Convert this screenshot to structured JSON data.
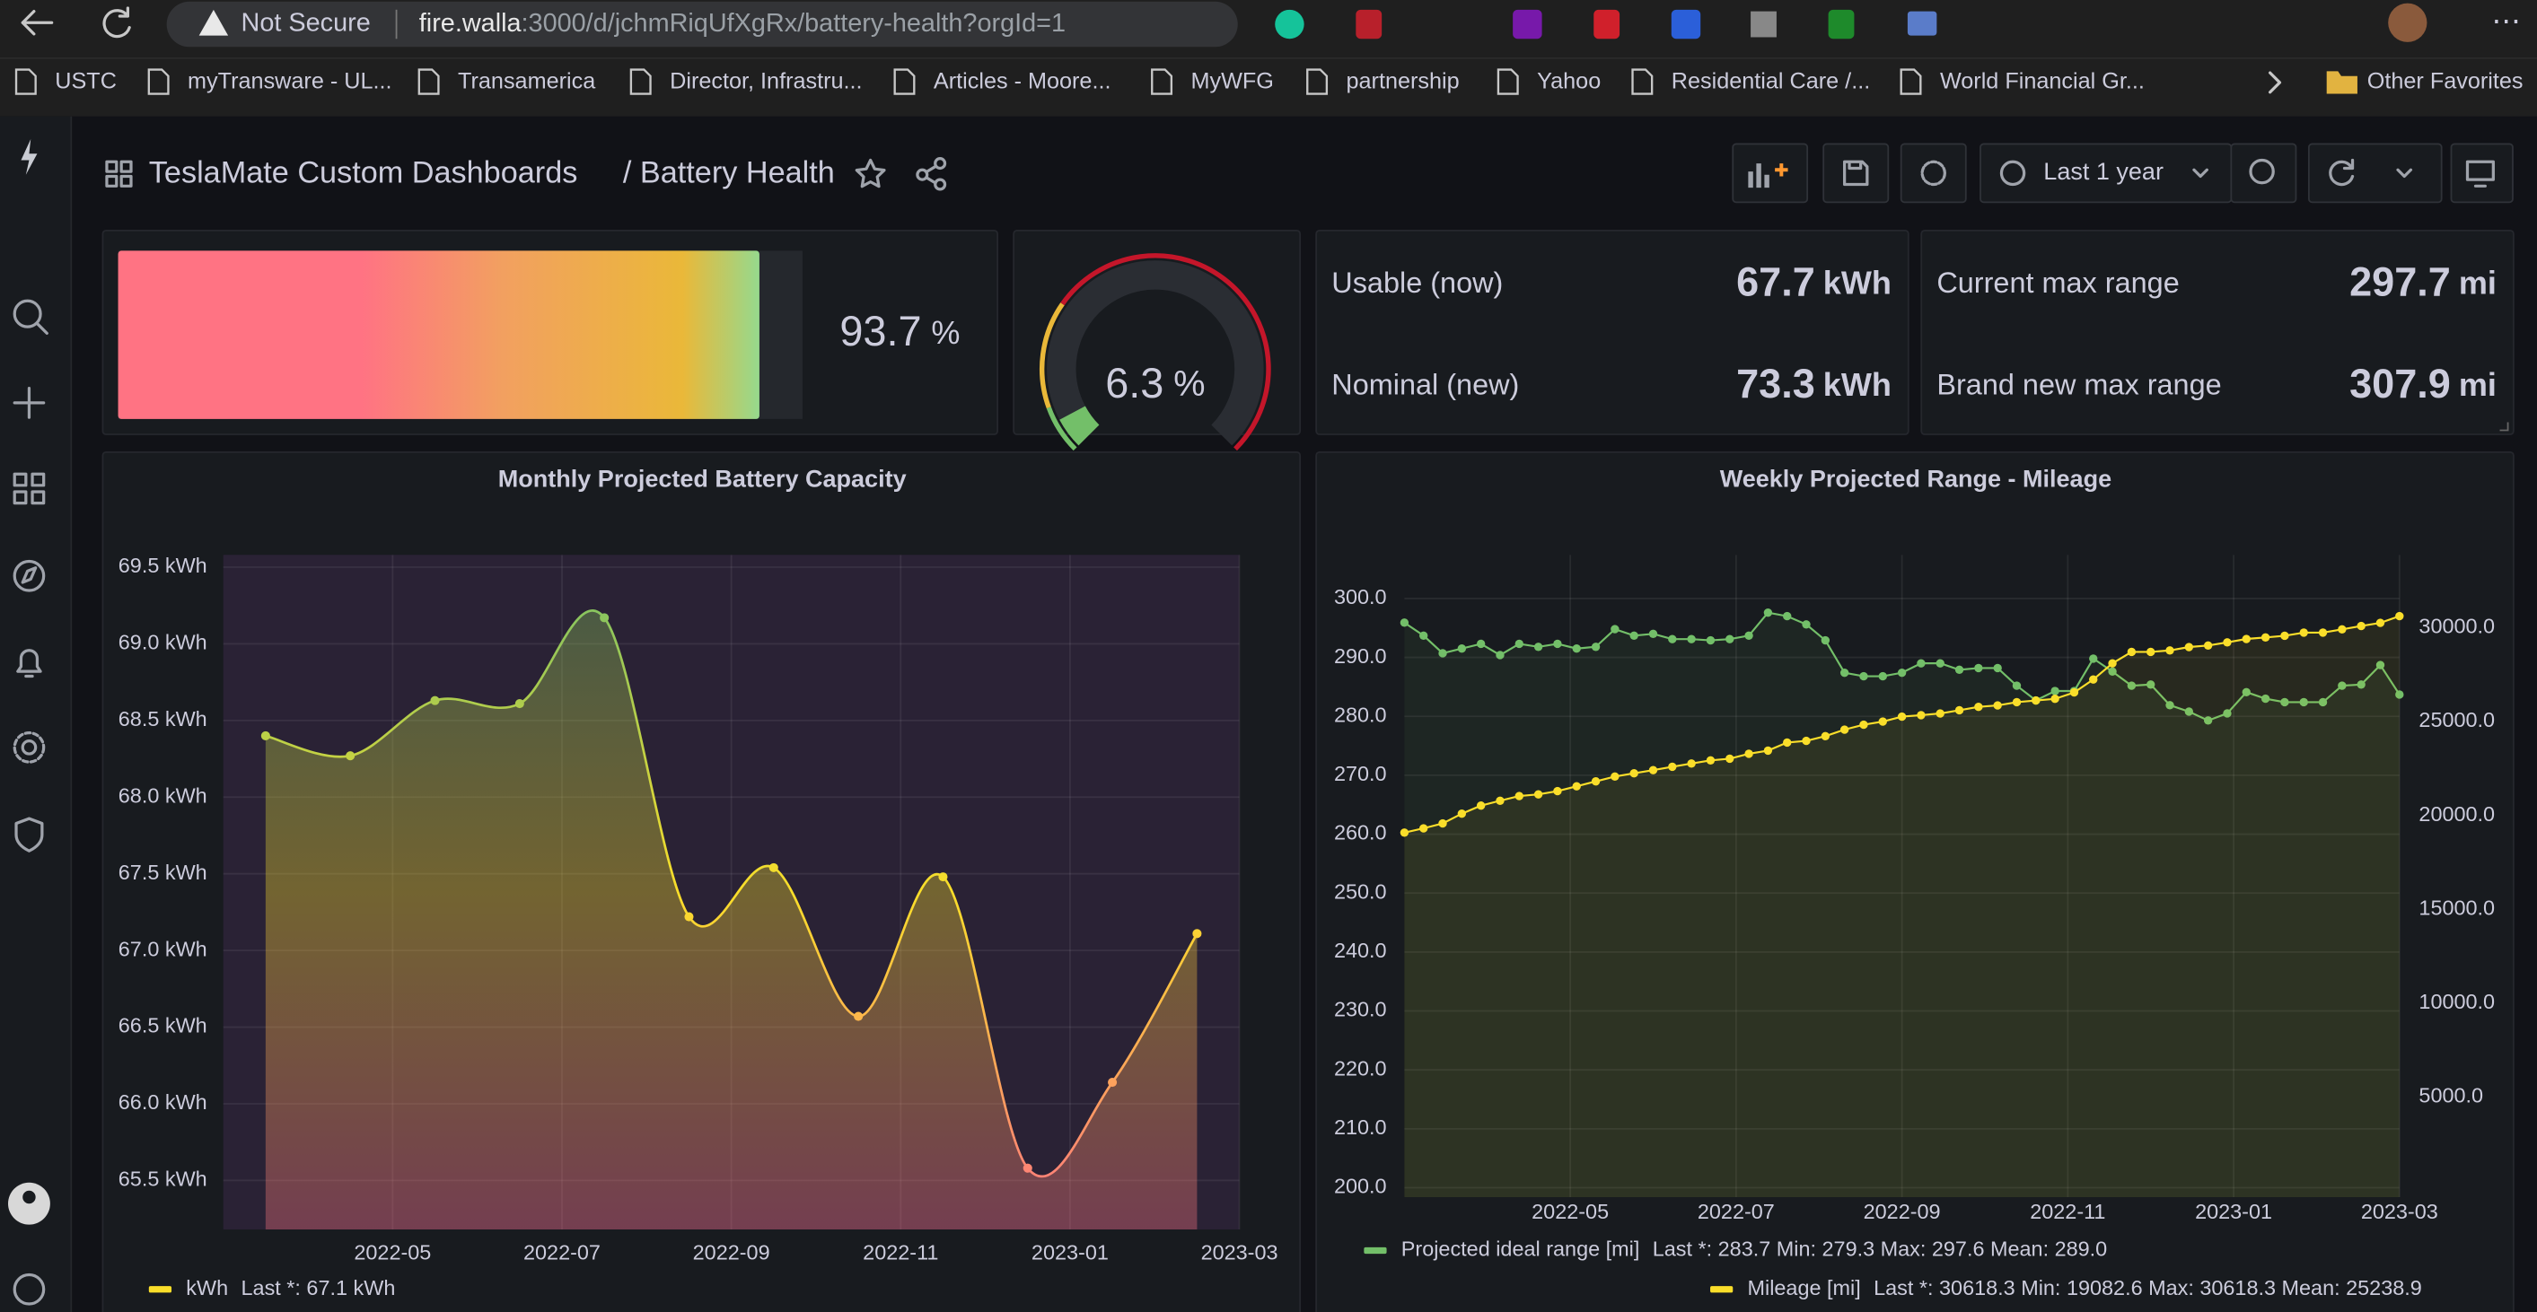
{
  "browser": {
    "security": "Not Secure",
    "url_host": "fire.walla",
    "url_path": ":3000/d/jchmRiqUfXgRx/battery-health?orgId=1",
    "bookmarks": [
      "USTC",
      "myTransware - UL...",
      "Transamerica",
      "Director, Infrastru...",
      "Articles - Moore...",
      "MyWFG",
      "partnership",
      "Yahoo",
      "Residential Care /...",
      "World Financial Gr..."
    ],
    "other_favorites": "Other Favorites"
  },
  "dashboard": {
    "folder": "TeslaMate Custom Dashboards",
    "title": "/ Battery Health",
    "time_range": "Last 1 year"
  },
  "panels": [
    {
      "type": "bargauge",
      "value": 93.7,
      "unit": "%",
      "range": [
        0,
        100
      ]
    },
    {
      "type": "gauge",
      "value": 6.3,
      "unit": "%",
      "range": [
        0,
        100
      ]
    },
    {
      "type": "stat",
      "rows": [
        {
          "label": "Usable (now)",
          "value": 67.7,
          "unit": "kWh"
        },
        {
          "label": "Nominal (new)",
          "value": 73.3,
          "unit": "kWh"
        }
      ]
    },
    {
      "type": "stat",
      "rows": [
        {
          "label": "Current max range",
          "value": 297.7,
          "unit": "mi"
        },
        {
          "label": "Brand new max range",
          "value": 307.9,
          "unit": "mi"
        }
      ]
    }
  ],
  "chart_data": [
    {
      "type": "area",
      "title": "Monthly Projected Battery Capacity",
      "x": [
        "2022-03",
        "2022-04",
        "2022-05",
        "2022-06",
        "2022-07",
        "2022-08",
        "2022-09",
        "2022-10",
        "2022-11",
        "2022-12",
        "2023-01",
        "2023-02"
      ],
      "series": [
        {
          "name": "kWh",
          "color": "#fade2a",
          "legend_stats": "Last *: 67.1 kWh",
          "gradient": [
            "#73bf69",
            "#fade2a",
            "#ff7383"
          ],
          "values": [
            68.4,
            68.27,
            68.63,
            68.61,
            69.17,
            67.22,
            67.54,
            66.57,
            67.48,
            65.58,
            66.14,
            67.11
          ]
        }
      ],
      "xlim": [
        "2022-03",
        "2023-03"
      ],
      "xticks": [
        "2022-05",
        "2022-07",
        "2022-09",
        "2022-11",
        "2023-01",
        "2023-03"
      ],
      "ylim": [
        65.18,
        69.58
      ],
      "yticks": [
        {
          "value": 65.5,
          "label": "65.5 kWh"
        },
        {
          "value": 66,
          "label": "66.0 kWh"
        },
        {
          "value": 66.5,
          "label": "66.5 kWh"
        },
        {
          "value": 67,
          "label": "67.0 kWh"
        },
        {
          "value": 67.5,
          "label": "67.5 kWh"
        },
        {
          "value": 68,
          "label": "68.0 kWh"
        },
        {
          "value": 68.5,
          "label": "68.5 kWh"
        },
        {
          "value": 69,
          "label": "69.0 kWh"
        },
        {
          "value": 69.5,
          "label": "69.5 kWh"
        }
      ],
      "grid": true,
      "plot_background": "#2a2235"
    },
    {
      "type": "line",
      "title": "Weekly Projected Range - Mileage",
      "series": [
        {
          "name": "Projected ideal range [mi]",
          "color": "#73bf69",
          "axis": "y",
          "legend_stats": "Last *: 283.7  Min: 279.3  Max: 297.6  Mean: 289.0",
          "values": [
            295.9,
            293.7,
            290.7,
            291.5,
            292.3,
            290.4,
            292.3,
            291.8,
            292.3,
            291.5,
            291.8,
            294.8,
            293.7,
            294.0,
            293.1,
            293.1,
            292.9,
            293.1,
            293.7,
            297.6,
            297.0,
            295.6,
            292.9,
            287.4,
            286.8,
            286.8,
            287.4,
            289.0,
            289.0,
            287.9,
            288.2,
            288.2,
            285.2,
            282.7,
            284.3,
            284.3,
            289.8,
            287.6,
            285.2,
            285.4,
            281.9,
            280.8,
            279.3,
            280.5,
            284.1,
            283.0,
            282.4,
            282.4,
            282.4,
            285.2,
            285.4,
            288.7,
            283.7
          ]
        },
        {
          "name": "Mileage [mi]",
          "color": "#fade2a",
          "axis": "y2",
          "legend_stats": "Last *: 30618.3  Min: 19082.6  Max: 30618.3  Mean: 25238.9",
          "values": [
            19082.6,
            19310,
            19570,
            20090,
            20520,
            20780,
            21030,
            21120,
            21290,
            21550,
            21810,
            22070,
            22240,
            22410,
            22590,
            22760,
            22930,
            23020,
            23280,
            23450,
            23880,
            23970,
            24220,
            24570,
            24830,
            25000,
            25260,
            25340,
            25430,
            25600,
            25780,
            25860,
            26030,
            26120,
            26210,
            26550,
            27240,
            28100,
            28710,
            28710,
            28790,
            28970,
            29050,
            29220,
            29400,
            29480,
            29570,
            29740,
            29740,
            29910,
            30090,
            30260,
            30618.3
          ]
        }
      ],
      "xlim": [
        "2022-03",
        "2023-03"
      ],
      "xticks": [
        "2022-05",
        "2022-07",
        "2022-09",
        "2022-11",
        "2023-01",
        "2023-03"
      ],
      "ylim": [
        198.4,
        307.4
      ],
      "yticks": [
        {
          "value": 200,
          "label": "200.0"
        },
        {
          "value": 210,
          "label": "210.0"
        },
        {
          "value": 220,
          "label": "220.0"
        },
        {
          "value": 230,
          "label": "230.0"
        },
        {
          "value": 240,
          "label": "240.0"
        },
        {
          "value": 250,
          "label": "250.0"
        },
        {
          "value": 260,
          "label": "260.0"
        },
        {
          "value": 270,
          "label": "270.0"
        },
        {
          "value": 280,
          "label": "280.0"
        },
        {
          "value": 290,
          "label": "290.0"
        },
        {
          "value": 300,
          "label": "300.0"
        }
      ],
      "y2lim": [
        -345,
        33880
      ],
      "y2ticks": [
        {
          "value": 5000,
          "label": "5000.0"
        },
        {
          "value": 10000,
          "label": "10000.0"
        },
        {
          "value": 15000,
          "label": "15000.0"
        },
        {
          "value": 20000,
          "label": "20000.0"
        },
        {
          "value": 25000,
          "label": "25000.0"
        },
        {
          "value": 30000,
          "label": "30000.0"
        }
      ],
      "grid": true
    }
  ]
}
